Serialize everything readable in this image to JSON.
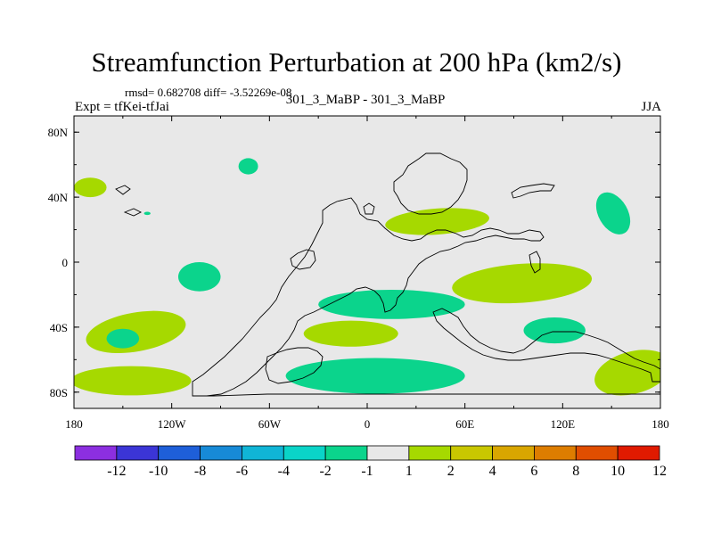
{
  "chart_data": {
    "type": "heatmap",
    "title": "Streamfunction Perturbation at 200 hPa (km2/s)",
    "subtitle": "rmsd= 0.682708 diff= -3.52269e-08",
    "left_label": "Expt = tfKei-tfJai",
    "center_label": "301_3_MaBP - 301_3_MaBP",
    "right_label": "JJA",
    "x_ticks": [
      "180",
      "120W",
      "60W",
      "0",
      "60E",
      "120E",
      "180"
    ],
    "y_ticks": [
      "80N",
      "40N",
      "0",
      "40S",
      "80S"
    ],
    "xlim": [
      -180,
      180
    ],
    "ylim": [
      -90,
      90
    ],
    "colorbar_labels": [
      "-12",
      "-10",
      "-8",
      "-6",
      "-4",
      "-2",
      "-1",
      "1",
      "2",
      "4",
      "6",
      "8",
      "10",
      "12"
    ],
    "colorbar_colors": [
      "#8c2fe0",
      "#3b35d6",
      "#1e5fd9",
      "#178ad7",
      "#10b5d6",
      "#0ad4c8",
      "#0bd48c",
      "#e8e8e8",
      "#a6d900",
      "#c9c700",
      "#d9a600",
      "#dd7d00",
      "#e04e00",
      "#e01a00"
    ],
    "background_color": "#e8e8e8",
    "features": [
      {
        "name": "green-blob",
        "color": "#a6d900",
        "lon": -170,
        "lat": 46,
        "rx": 10,
        "ry": 6,
        "rot": 0
      },
      {
        "name": "teal-blob",
        "color": "#0bd48c",
        "lon": -73,
        "lat": 59,
        "rx": 6,
        "ry": 5,
        "rot": 0
      },
      {
        "name": "teal-blob",
        "color": "#0bd48c",
        "lon": -135,
        "lat": 30,
        "rx": 2,
        "ry": 1,
        "rot": 0
      },
      {
        "name": "green-blob",
        "color": "#a6d900",
        "lon": 43,
        "lat": 25,
        "rx": 32,
        "ry": 8,
        "rot": -4
      },
      {
        "name": "teal-blob",
        "color": "#0bd48c",
        "lon": 151,
        "lat": 30,
        "rx": 9,
        "ry": 14,
        "rot": -30
      },
      {
        "name": "teal-blob",
        "color": "#0bd48c",
        "lon": -103,
        "lat": -9,
        "rx": 13,
        "ry": 9,
        "rot": 0
      },
      {
        "name": "teal-blob",
        "color": "#0bd48c",
        "lon": 15,
        "lat": -26,
        "rx": 45,
        "ry": 9,
        "rot": 0
      },
      {
        "name": "green-blob",
        "color": "#a6d900",
        "lon": 95,
        "lat": -13,
        "rx": 43,
        "ry": 12,
        "rot": -4
      },
      {
        "name": "green-blob",
        "color": "#a6d900",
        "lon": -142,
        "lat": -43,
        "rx": 31,
        "ry": 12,
        "rot": -10
      },
      {
        "name": "teal-blob",
        "color": "#0bd48c",
        "lon": -150,
        "lat": -47,
        "rx": 10,
        "ry": 6,
        "rot": 0
      },
      {
        "name": "green-blob",
        "color": "#a6d900",
        "lon": -10,
        "lat": -44,
        "rx": 29,
        "ry": 8,
        "rot": 0
      },
      {
        "name": "teal-blob",
        "color": "#0bd48c",
        "lon": 115,
        "lat": -42,
        "rx": 19,
        "ry": 8,
        "rot": 0
      },
      {
        "name": "teal-blob",
        "color": "#0bd48c",
        "lon": 5,
        "lat": -70,
        "rx": 55,
        "ry": 11,
        "rot": 0
      },
      {
        "name": "green-blob",
        "color": "#a6d900",
        "lon": -145,
        "lat": -73,
        "rx": 37,
        "ry": 9,
        "rot": 0
      },
      {
        "name": "green-blob",
        "color": "#a6d900",
        "lon": 163,
        "lat": -68,
        "rx": 24,
        "ry": 13,
        "rot": -15
      }
    ]
  }
}
